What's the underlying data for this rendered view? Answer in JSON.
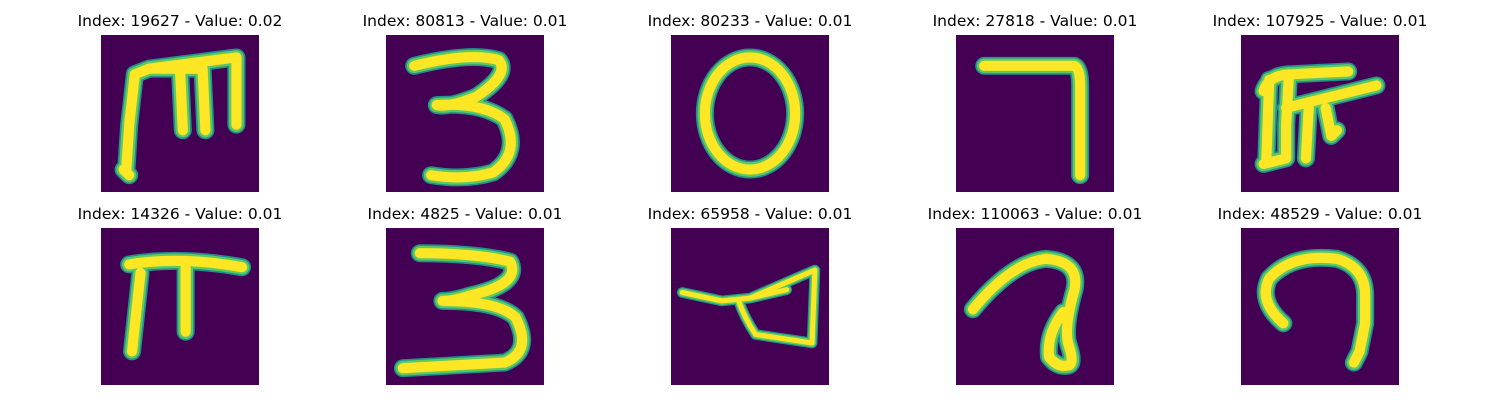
{
  "colors": {
    "background": "#440154",
    "stroke_outer": "#21918c",
    "stroke_mid": "#5ec962",
    "stroke_core": "#fde725"
  },
  "panels": [
    {
      "title": "Index: 19627 - Value: 0.02",
      "glyph": "m-shape"
    },
    {
      "title": "Index: 80813 - Value: 0.01",
      "glyph": "three"
    },
    {
      "title": "Index: 80233 - Value: 0.01",
      "glyph": "zero"
    },
    {
      "title": "Index: 27818 - Value: 0.01",
      "glyph": "seven"
    },
    {
      "title": "Index: 107925 - Value: 0.01",
      "glyph": "m-hook-shape"
    },
    {
      "title": "Index: 14326 - Value: 0.01",
      "glyph": "pi-shape"
    },
    {
      "title": "Index: 4825 - Value: 0.01",
      "glyph": "three-bold"
    },
    {
      "title": "Index: 65958 - Value: 0.01",
      "glyph": "triangle-loop"
    },
    {
      "title": "Index: 110063 - Value: 0.01",
      "glyph": "loop-a"
    },
    {
      "title": "Index: 48529 - Value: 0.01",
      "glyph": "hook-shape"
    }
  ]
}
